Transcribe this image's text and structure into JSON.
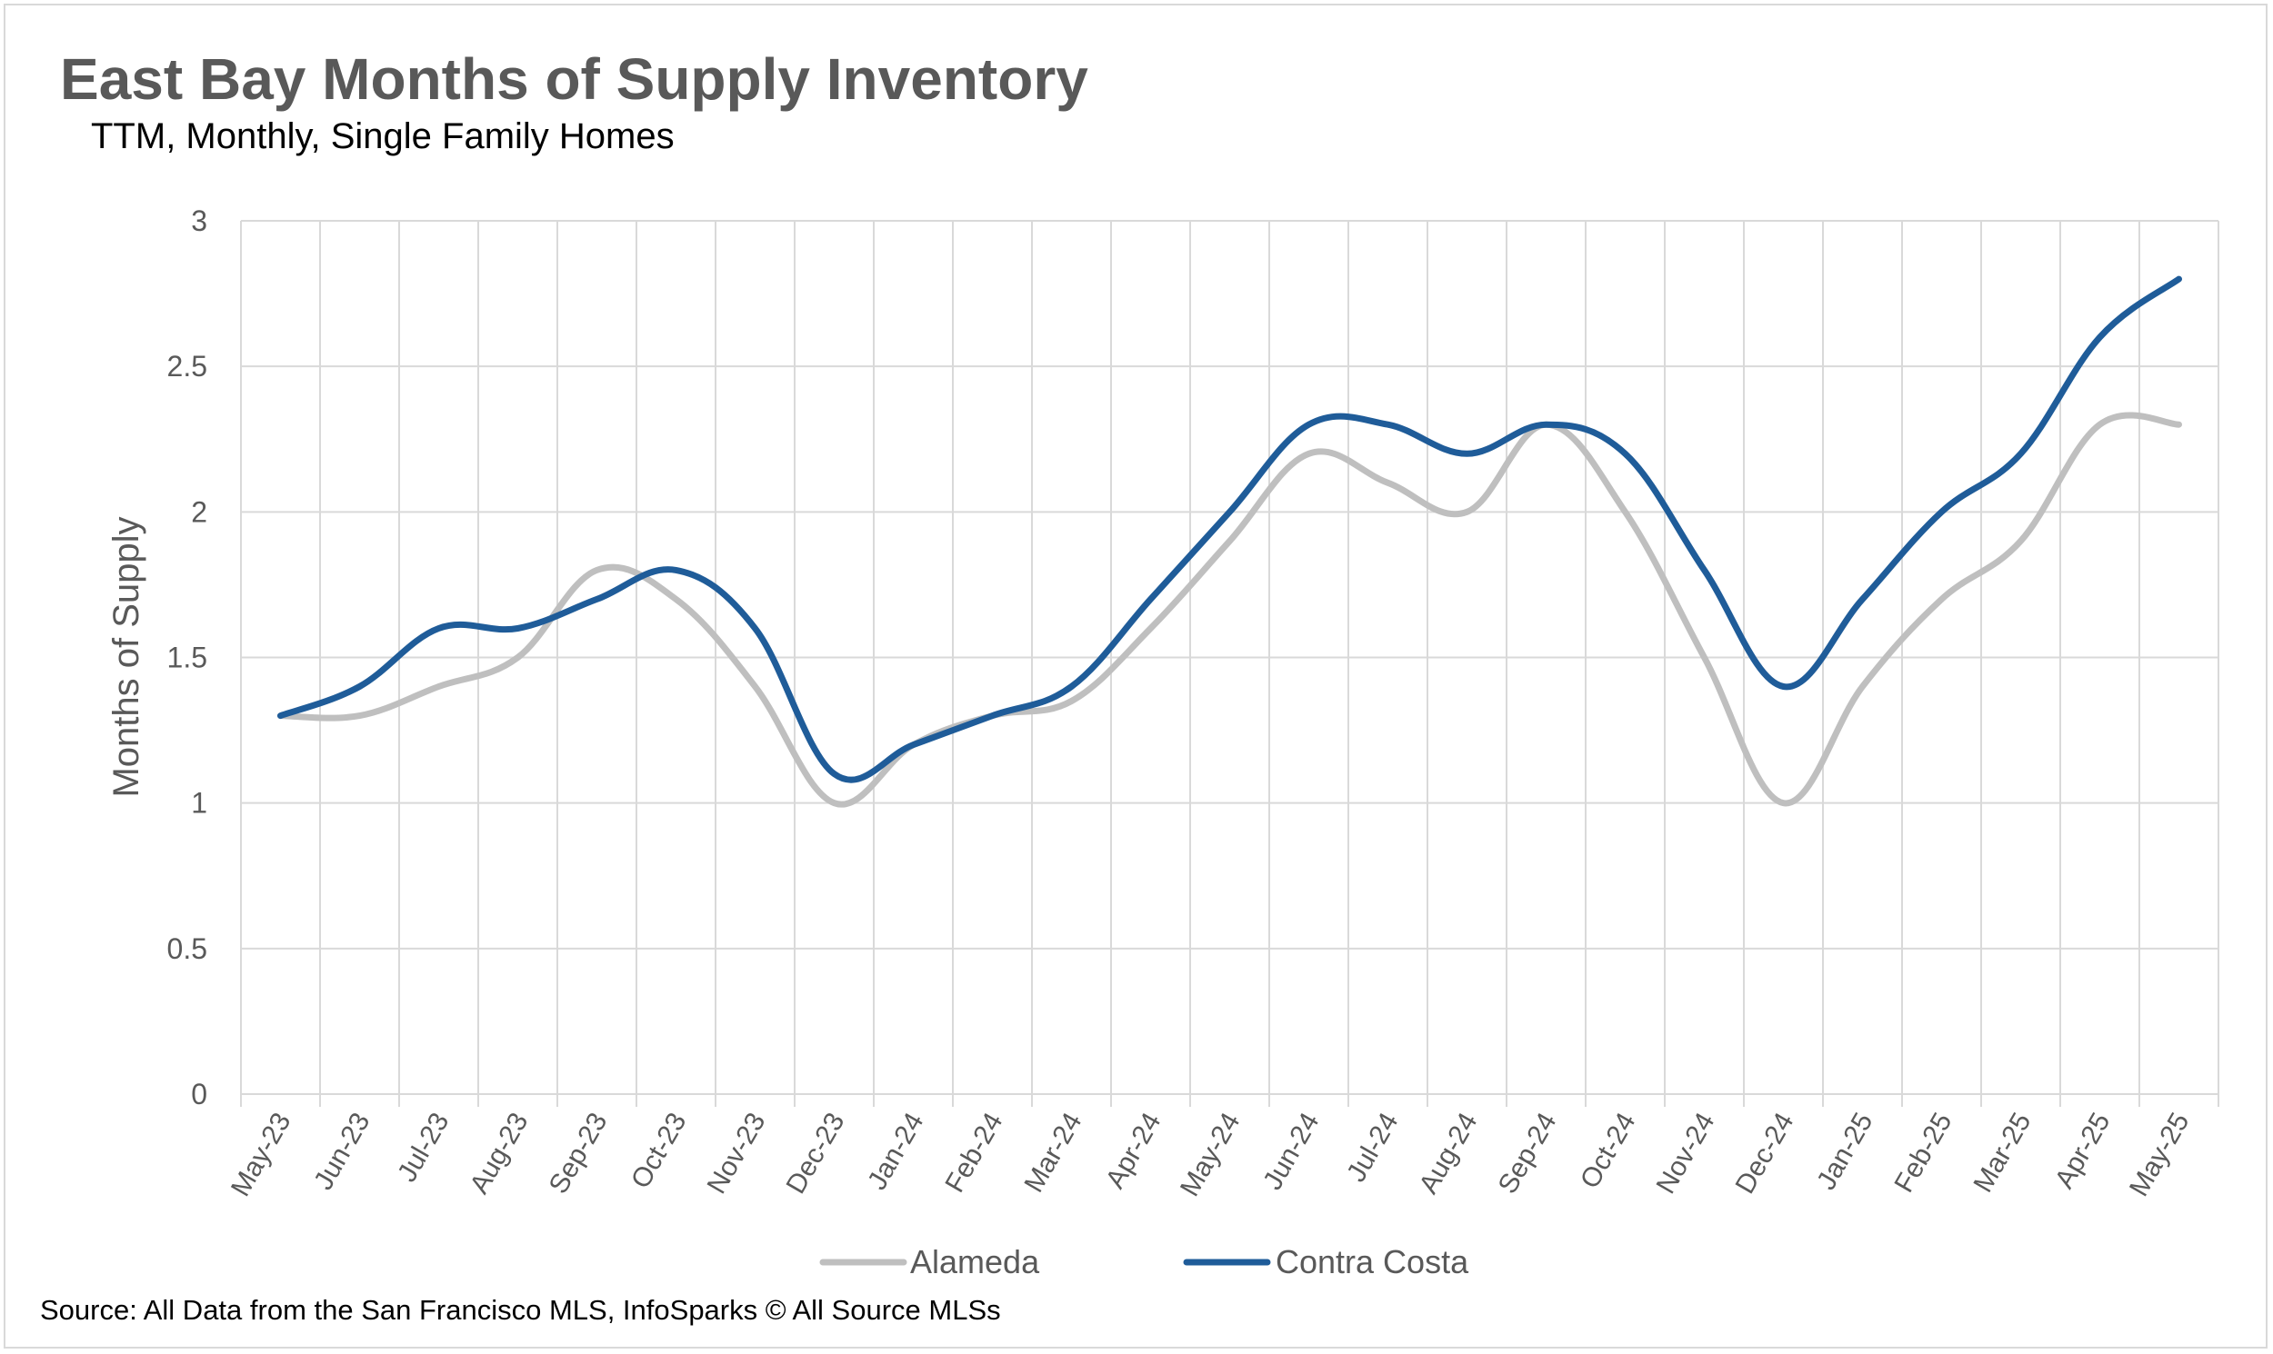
{
  "chart_data": {
    "type": "line",
    "title": "East Bay Months of Supply Inventory",
    "subtitle": "TTM, Monthly, Single Family Homes",
    "xlabel": "",
    "ylabel": "Months of Supply",
    "ylim": [
      0,
      3
    ],
    "yticks": [
      "0",
      "0.5",
      "1",
      "1.5",
      "2",
      "2.5",
      "3"
    ],
    "grid": true,
    "legend": "bottom",
    "categories": [
      "May-23",
      "Jun-23",
      "Jul-23",
      "Aug-23",
      "Sep-23",
      "Oct-23",
      "Nov-23",
      "Dec-23",
      "Jan-24",
      "Feb-24",
      "Mar-24",
      "Apr-24",
      "May-24",
      "Jun-24",
      "Jul-24",
      "Aug-24",
      "Sep-24",
      "Oct-24",
      "Nov-24",
      "Dec-24",
      "Jan-25",
      "Feb-25",
      "Mar-25",
      "Apr-25",
      "May-25"
    ],
    "series": [
      {
        "name": "Alameda",
        "color": "#bfbfbf",
        "values": [
          1.3,
          1.3,
          1.4,
          1.5,
          1.8,
          1.7,
          1.4,
          1.0,
          1.2,
          1.3,
          1.35,
          1.6,
          1.9,
          2.2,
          2.1,
          2.0,
          2.3,
          2.0,
          1.5,
          1.0,
          1.4,
          1.7,
          1.9,
          2.3,
          2.3
        ]
      },
      {
        "name": "Contra Costa",
        "color": "#1f5c99",
        "values": [
          1.3,
          1.4,
          1.6,
          1.6,
          1.7,
          1.8,
          1.6,
          1.1,
          1.2,
          1.3,
          1.4,
          1.7,
          2.0,
          2.3,
          2.3,
          2.2,
          2.3,
          2.2,
          1.8,
          1.4,
          1.7,
          2.0,
          2.2,
          2.6,
          2.8
        ]
      }
    ],
    "source": "Source: All Data from the San Francisco MLS, InfoSparks © All Source MLSs"
  }
}
